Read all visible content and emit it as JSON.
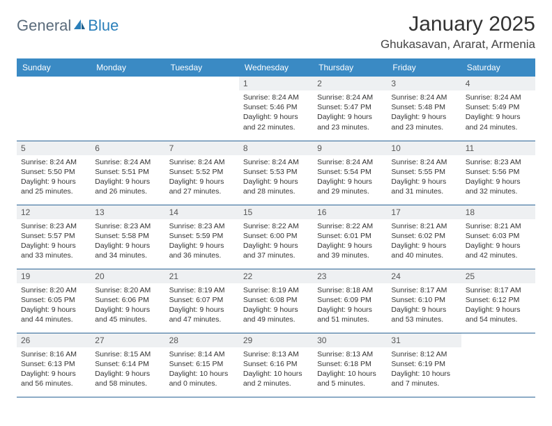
{
  "brand": {
    "name1": "General",
    "name2": "Blue"
  },
  "title": "January 2025",
  "location": "Ghukasavan, Ararat, Armenia",
  "colors": {
    "header_bg": "#3a8ac4",
    "header_text": "#ffffff",
    "daynum_bg": "#eef0f2",
    "row_border": "#2a6496",
    "brand_gray": "#5a6b7b",
    "brand_blue": "#2a7fba"
  },
  "weekdays": [
    "Sunday",
    "Monday",
    "Tuesday",
    "Wednesday",
    "Thursday",
    "Friday",
    "Saturday"
  ],
  "weeks": [
    [
      {
        "empty": true
      },
      {
        "empty": true
      },
      {
        "empty": true
      },
      {
        "n": "1",
        "sr": "8:24 AM",
        "ss": "5:46 PM",
        "dl": "9 hours and 22 minutes."
      },
      {
        "n": "2",
        "sr": "8:24 AM",
        "ss": "5:47 PM",
        "dl": "9 hours and 23 minutes."
      },
      {
        "n": "3",
        "sr": "8:24 AM",
        "ss": "5:48 PM",
        "dl": "9 hours and 23 minutes."
      },
      {
        "n": "4",
        "sr": "8:24 AM",
        "ss": "5:49 PM",
        "dl": "9 hours and 24 minutes."
      }
    ],
    [
      {
        "n": "5",
        "sr": "8:24 AM",
        "ss": "5:50 PM",
        "dl": "9 hours and 25 minutes."
      },
      {
        "n": "6",
        "sr": "8:24 AM",
        "ss": "5:51 PM",
        "dl": "9 hours and 26 minutes."
      },
      {
        "n": "7",
        "sr": "8:24 AM",
        "ss": "5:52 PM",
        "dl": "9 hours and 27 minutes."
      },
      {
        "n": "8",
        "sr": "8:24 AM",
        "ss": "5:53 PM",
        "dl": "9 hours and 28 minutes."
      },
      {
        "n": "9",
        "sr": "8:24 AM",
        "ss": "5:54 PM",
        "dl": "9 hours and 29 minutes."
      },
      {
        "n": "10",
        "sr": "8:24 AM",
        "ss": "5:55 PM",
        "dl": "9 hours and 31 minutes."
      },
      {
        "n": "11",
        "sr": "8:23 AM",
        "ss": "5:56 PM",
        "dl": "9 hours and 32 minutes."
      }
    ],
    [
      {
        "n": "12",
        "sr": "8:23 AM",
        "ss": "5:57 PM",
        "dl": "9 hours and 33 minutes."
      },
      {
        "n": "13",
        "sr": "8:23 AM",
        "ss": "5:58 PM",
        "dl": "9 hours and 34 minutes."
      },
      {
        "n": "14",
        "sr": "8:23 AM",
        "ss": "5:59 PM",
        "dl": "9 hours and 36 minutes."
      },
      {
        "n": "15",
        "sr": "8:22 AM",
        "ss": "6:00 PM",
        "dl": "9 hours and 37 minutes."
      },
      {
        "n": "16",
        "sr": "8:22 AM",
        "ss": "6:01 PM",
        "dl": "9 hours and 39 minutes."
      },
      {
        "n": "17",
        "sr": "8:21 AM",
        "ss": "6:02 PM",
        "dl": "9 hours and 40 minutes."
      },
      {
        "n": "18",
        "sr": "8:21 AM",
        "ss": "6:03 PM",
        "dl": "9 hours and 42 minutes."
      }
    ],
    [
      {
        "n": "19",
        "sr": "8:20 AM",
        "ss": "6:05 PM",
        "dl": "9 hours and 44 minutes."
      },
      {
        "n": "20",
        "sr": "8:20 AM",
        "ss": "6:06 PM",
        "dl": "9 hours and 45 minutes."
      },
      {
        "n": "21",
        "sr": "8:19 AM",
        "ss": "6:07 PM",
        "dl": "9 hours and 47 minutes."
      },
      {
        "n": "22",
        "sr": "8:19 AM",
        "ss": "6:08 PM",
        "dl": "9 hours and 49 minutes."
      },
      {
        "n": "23",
        "sr": "8:18 AM",
        "ss": "6:09 PM",
        "dl": "9 hours and 51 minutes."
      },
      {
        "n": "24",
        "sr": "8:17 AM",
        "ss": "6:10 PM",
        "dl": "9 hours and 53 minutes."
      },
      {
        "n": "25",
        "sr": "8:17 AM",
        "ss": "6:12 PM",
        "dl": "9 hours and 54 minutes."
      }
    ],
    [
      {
        "n": "26",
        "sr": "8:16 AM",
        "ss": "6:13 PM",
        "dl": "9 hours and 56 minutes."
      },
      {
        "n": "27",
        "sr": "8:15 AM",
        "ss": "6:14 PM",
        "dl": "9 hours and 58 minutes."
      },
      {
        "n": "28",
        "sr": "8:14 AM",
        "ss": "6:15 PM",
        "dl": "10 hours and 0 minutes."
      },
      {
        "n": "29",
        "sr": "8:13 AM",
        "ss": "6:16 PM",
        "dl": "10 hours and 2 minutes."
      },
      {
        "n": "30",
        "sr": "8:13 AM",
        "ss": "6:18 PM",
        "dl": "10 hours and 5 minutes."
      },
      {
        "n": "31",
        "sr": "8:12 AM",
        "ss": "6:19 PM",
        "dl": "10 hours and 7 minutes."
      },
      {
        "empty": true
      }
    ]
  ],
  "labels": {
    "sunrise": "Sunrise: ",
    "sunset": "Sunset: ",
    "daylight": "Daylight: "
  }
}
